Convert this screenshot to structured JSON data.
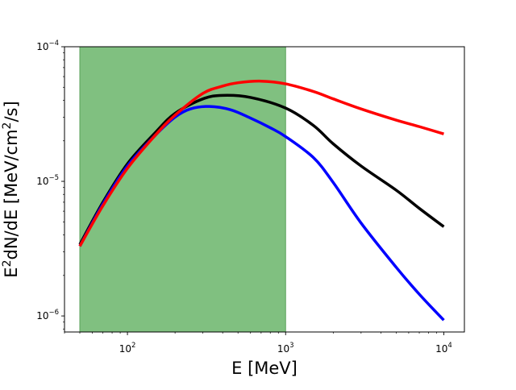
{
  "chart_data": {
    "type": "line",
    "title": "",
    "xlabel": "E [MeV]",
    "ylabel": {
      "base": "E",
      "exp1": "2",
      "mid": "dN/dE [MeV/cm",
      "exp2": "2",
      "end": "/s]"
    },
    "xscale": "log",
    "yscale": "log",
    "xlim": [
      40,
      13500
    ],
    "ylim": [
      7.6e-07,
      0.0001
    ],
    "x_ticks": [
      {
        "value": 100,
        "base": "10",
        "exp": "2"
      },
      {
        "value": 1000,
        "base": "10",
        "exp": "3"
      },
      {
        "value": 10000,
        "base": "10",
        "exp": "4"
      }
    ],
    "y_ticks": [
      {
        "value": 1e-06,
        "base": "10",
        "exp": "−6"
      },
      {
        "value": 1e-05,
        "base": "10",
        "exp": "−5"
      },
      {
        "value": 0.0001,
        "base": "10",
        "exp": "−4"
      }
    ],
    "shaded_band": {
      "x_range": [
        50,
        1000
      ],
      "color": "#80c080",
      "edge_color": "#5aa05a"
    },
    "series": [
      {
        "name": "black",
        "color": "#000000",
        "x": [
          50,
          70,
          100,
          150,
          200,
          300,
          400,
          600,
          1000,
          1500,
          2000,
          3000,
          5000,
          7000,
          10000
        ],
        "y": [
          3.4e-06,
          7e-06,
          1.35e-05,
          2.3e-05,
          3.2e-05,
          4.1e-05,
          4.35e-05,
          4.2e-05,
          3.5e-05,
          2.6e-05,
          1.9e-05,
          1.3e-05,
          8.6e-06,
          6.3e-06,
          4.6e-06
        ]
      },
      {
        "name": "blue",
        "color": "#0000ff",
        "x": [
          50,
          70,
          100,
          150,
          200,
          250,
          330,
          450,
          600,
          800,
          1000,
          1500,
          2000,
          3000,
          5000,
          7000,
          10000
        ],
        "y": [
          3.3e-06,
          6.8e-06,
          1.3e-05,
          2.2e-05,
          3e-05,
          3.45e-05,
          3.6e-05,
          3.4e-05,
          2.95e-05,
          2.5e-05,
          2.15e-05,
          1.5e-05,
          9.8e-06,
          4.9e-06,
          2.3e-06,
          1.45e-06,
          9.3e-07
        ]
      },
      {
        "name": "red",
        "color": "#ff0000",
        "x": [
          50,
          70,
          100,
          150,
          200,
          300,
          400,
          500,
          700,
          1000,
          1500,
          2000,
          3000,
          5000,
          7000,
          10000
        ],
        "y": [
          3.3e-06,
          6.6e-06,
          1.25e-05,
          2.2e-05,
          3.1e-05,
          4.5e-05,
          5.1e-05,
          5.4e-05,
          5.55e-05,
          5.3e-05,
          4.65e-05,
          4.1e-05,
          3.45e-05,
          2.85e-05,
          2.55e-05,
          2.25e-05
        ]
      }
    ]
  }
}
